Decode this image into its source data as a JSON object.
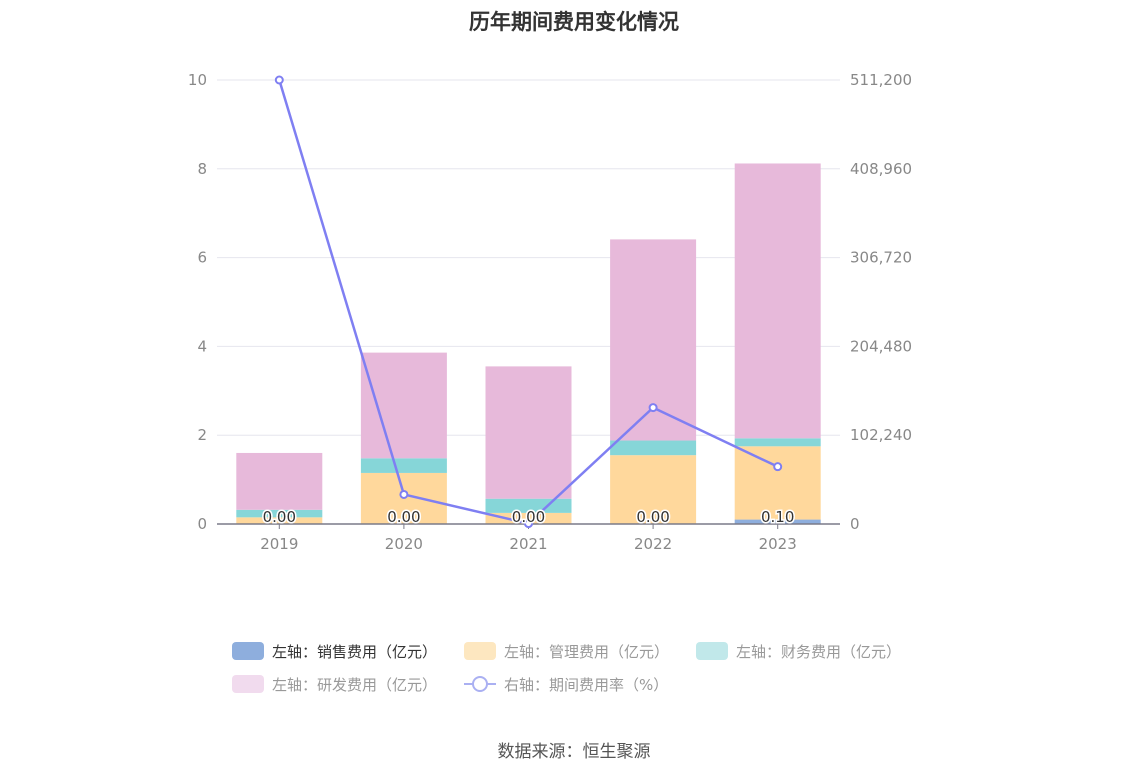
{
  "title": "历年期间费用变化情况",
  "source": "数据来源：恒生聚源",
  "legend": [
    {
      "label": "左轴：销售费用（亿元）",
      "color": "#8eaedd",
      "type": "bar",
      "active": true
    },
    {
      "label": "左轴：管理费用（亿元）",
      "color": "#fde7c0",
      "type": "bar",
      "active": false
    },
    {
      "label": "左轴：财务费用（亿元）",
      "color": "#c1e8ea",
      "type": "bar",
      "active": false
    },
    {
      "label": "左轴：研发费用（亿元）",
      "color": "#f1dbee",
      "type": "bar",
      "active": false
    },
    {
      "label": "右轴：期间费用率（%）",
      "color": "#aab0f2",
      "type": "line",
      "active": false
    }
  ],
  "chart_data": {
    "type": "bar",
    "stacked": true,
    "categories": [
      "2019",
      "2020",
      "2021",
      "2022",
      "2023"
    ],
    "y_left": {
      "min": 0,
      "max": 10,
      "ticks": [
        "0",
        "2",
        "4",
        "6",
        "8",
        "10"
      ]
    },
    "y_right": {
      "min": 0,
      "max": 511200,
      "ticks": [
        "0",
        "102,240",
        "204,480",
        "306,720",
        "408,960",
        "511,200"
      ]
    },
    "series": [
      {
        "name": "左轴：销售费用（亿元）",
        "axis": "left",
        "color": "#8eaedd",
        "values": [
          0.0,
          0.0,
          0.0,
          0.0,
          0.1
        ],
        "labels": [
          "0.00",
          "0.00",
          "0.00",
          "0.00",
          "0.10"
        ]
      },
      {
        "name": "左轴：管理费用（亿元）",
        "axis": "left",
        "color": "#ffd89c",
        "values": [
          0.15,
          1.15,
          0.25,
          1.55,
          1.65
        ]
      },
      {
        "name": "左轴：财务费用（亿元）",
        "axis": "left",
        "color": "#86d6d8",
        "values": [
          0.17,
          0.33,
          0.32,
          0.33,
          0.18
        ]
      },
      {
        "name": "左轴：研发费用（亿元）",
        "axis": "left",
        "color": "#e7b9da",
        "values": [
          1.28,
          2.38,
          2.98,
          4.53,
          6.19
        ]
      },
      {
        "name": "右轴：期间费用率（%）",
        "axis": "right",
        "type": "line",
        "color": "#7f7ff2",
        "values": [
          511200,
          34000,
          500,
          134000,
          66000
        ]
      }
    ],
    "grid": true
  }
}
